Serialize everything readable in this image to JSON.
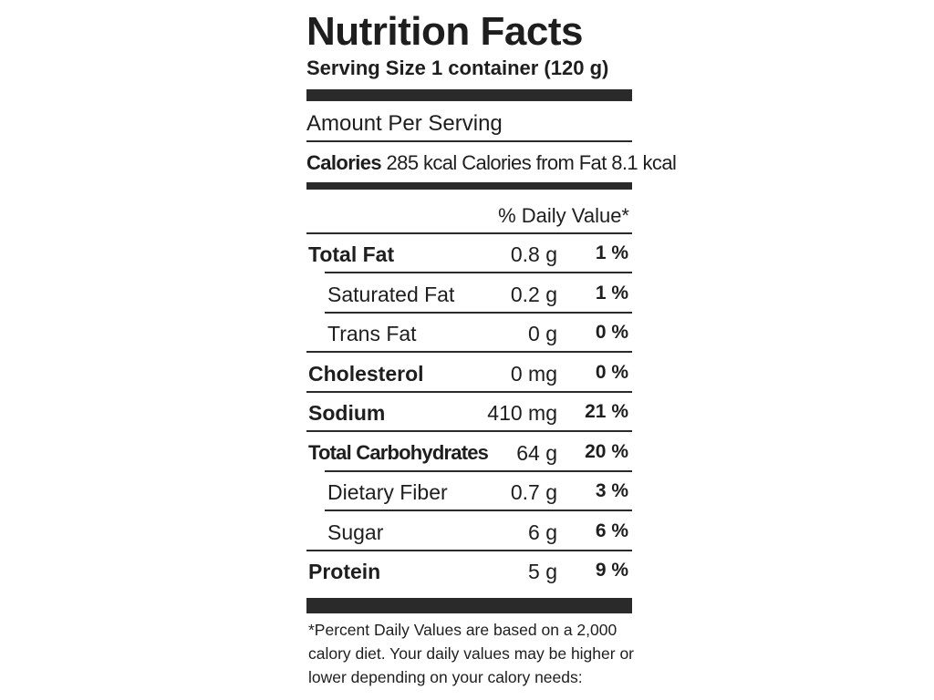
{
  "label": {
    "title": "Nutrition Facts",
    "serving_size": "Serving Size 1 container (120 g)",
    "amount_per_serving": "Amount Per Serving",
    "calories_label": "Calories",
    "calories_value": "285 kcal Calories from Fat 8.1 kcal",
    "daily_value_header": "% Daily Value*",
    "nutrients": [
      {
        "name": "Total Fat",
        "amount": "0.8 g",
        "daily_value": "1 %",
        "bold": true,
        "indent": false
      },
      {
        "name": "Saturated Fat",
        "amount": "0.2 g",
        "daily_value": "1 %",
        "bold": false,
        "indent": true
      },
      {
        "name": "Trans Fat",
        "amount": "0 g",
        "daily_value": "0 %",
        "bold": false,
        "indent": true
      },
      {
        "name": "Cholesterol",
        "amount": "0 mg",
        "daily_value": "0 %",
        "bold": true,
        "indent": false
      },
      {
        "name": "Sodium",
        "amount": "410 mg",
        "daily_value": "21 %",
        "bold": true,
        "indent": false
      },
      {
        "name": "Total Carbohydrates",
        "amount": "64 g",
        "daily_value": "20 %",
        "bold": true,
        "indent": false
      },
      {
        "name": "Dietary Fiber",
        "amount": "0.7 g",
        "daily_value": "3 %",
        "bold": false,
        "indent": true
      },
      {
        "name": "Sugar",
        "amount": "6 g",
        "daily_value": "6 %",
        "bold": false,
        "indent": true
      },
      {
        "name": "Protein",
        "amount": "5 g",
        "daily_value": "9 %",
        "bold": true,
        "indent": false
      }
    ],
    "footnote": [
      "*Percent Daily Values are based on a 2,000",
      "calory diet. Your daily values may be higher or",
      "lower depending on your calory needs:"
    ]
  }
}
